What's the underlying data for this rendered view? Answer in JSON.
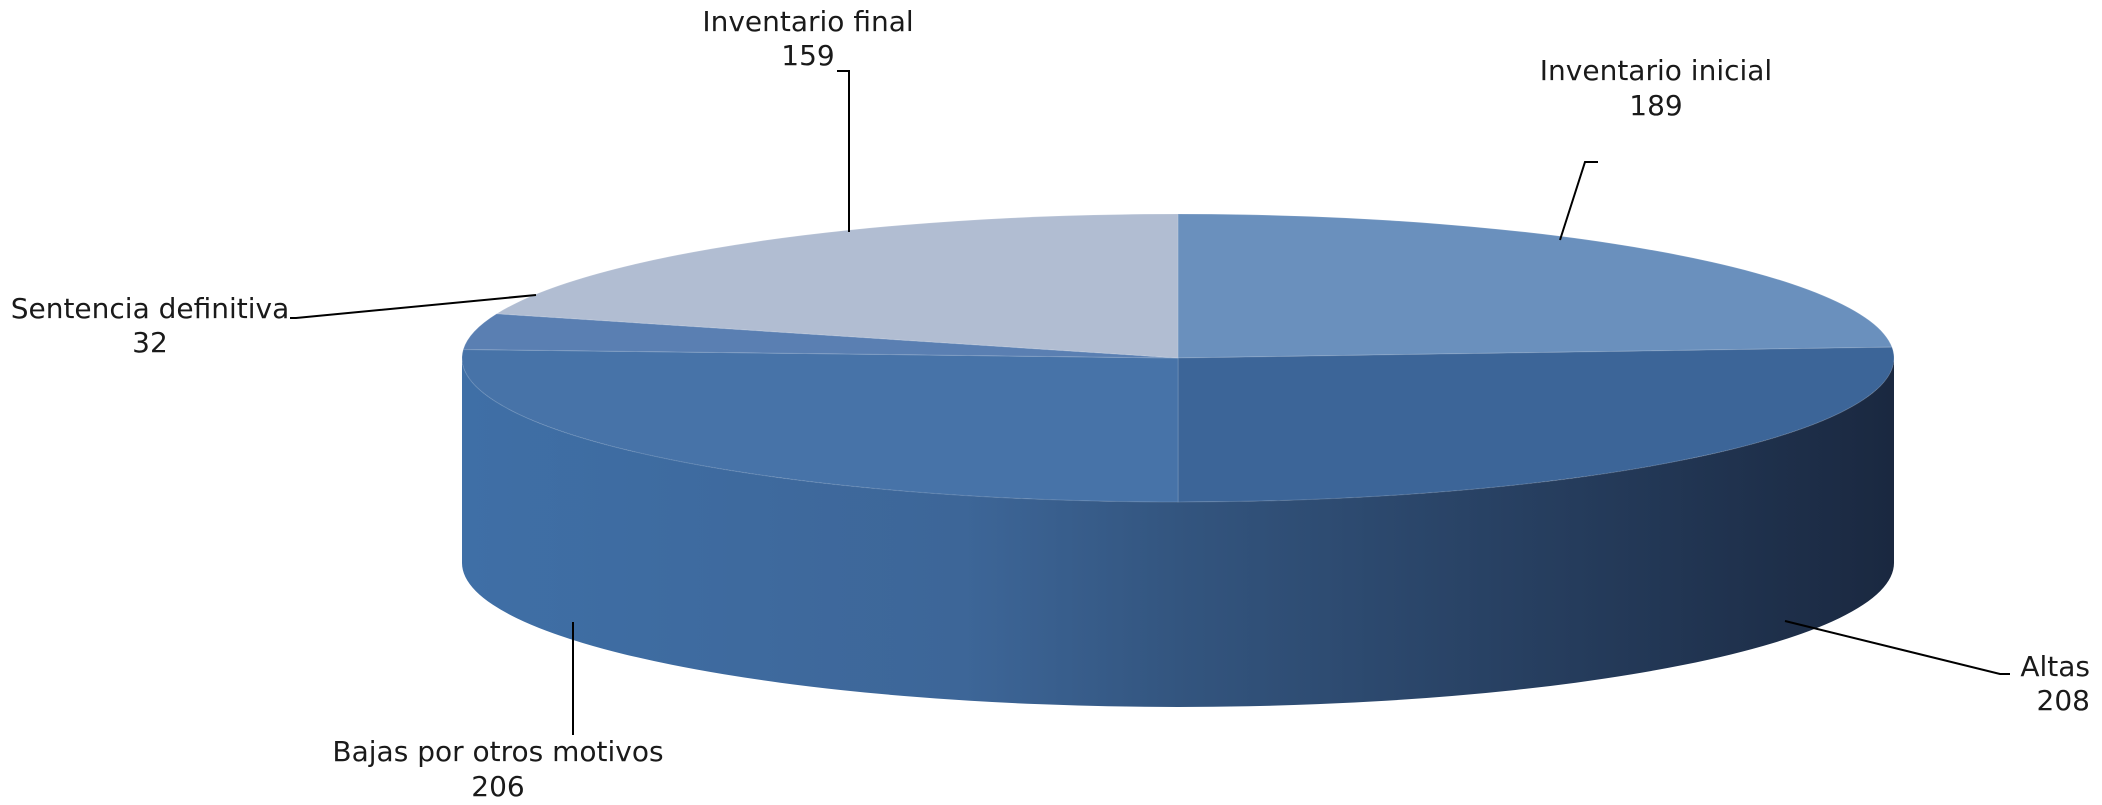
{
  "chart_data": {
    "type": "pie",
    "title": "",
    "slices": [
      {
        "label": "Inventario inicial",
        "value": 189,
        "color": "#6a90bd"
      },
      {
        "label": "Altas",
        "value": 208,
        "color": "#3c6598"
      },
      {
        "label": "Bajas por otros motivos",
        "value": 206,
        "color": "#4773a8"
      },
      {
        "label": "Sentencia definitiva",
        "value": 32,
        "color": "#5a7fb2"
      },
      {
        "label": "Inventario final",
        "value": 159,
        "color": "#b1bdd2"
      }
    ],
    "style": "3d-pie",
    "legend": "none",
    "data_labels": "category-name-and-value"
  }
}
